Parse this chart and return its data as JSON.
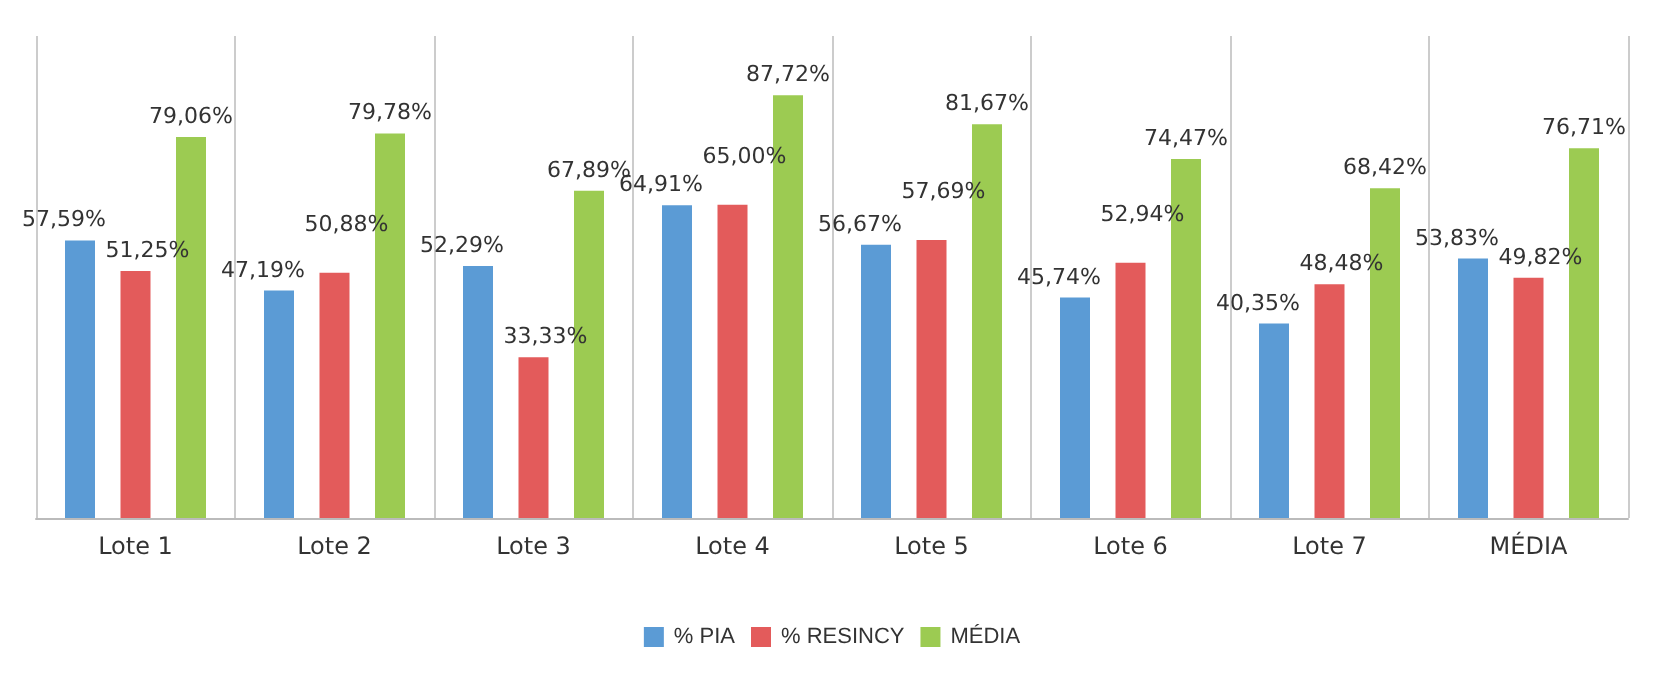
{
  "chart_data": {
    "type": "bar",
    "categories": [
      "Lote 1",
      "Lote 2",
      "Lote 3",
      "Lote 4",
      "Lote 5",
      "Lote 6",
      "Lote 7",
      "MÉDIA"
    ],
    "series": [
      {
        "name": "% PIA",
        "color": "#5b9bd5",
        "values": [
          57.59,
          47.19,
          52.29,
          64.91,
          56.67,
          45.74,
          40.35,
          53.83
        ],
        "value_labels": [
          "57,59%",
          "47,19%",
          "52,29%",
          "64,91%",
          "56,67%",
          "45,74%",
          "40,35%",
          "53,83%"
        ]
      },
      {
        "name": "% RESINCY",
        "color": "#e35b5b",
        "values": [
          51.25,
          50.88,
          33.33,
          65.0,
          57.69,
          52.94,
          48.48,
          49.82
        ],
        "value_labels": [
          "51,25%",
          "50,88%",
          "33,33%",
          "65,00%",
          "57,69%",
          "52,94%",
          "48,48%",
          "49,82%"
        ]
      },
      {
        "name": "MÉDIA",
        "color": "#9ccb52",
        "values": [
          79.06,
          79.78,
          67.89,
          87.72,
          81.67,
          74.47,
          68.42,
          76.71
        ],
        "value_labels": [
          "79,06%",
          "79,78%",
          "67,89%",
          "87,72%",
          "81,67%",
          "74,47%",
          "68,42%",
          "76,71%"
        ]
      }
    ],
    "ylim": [
      0,
      100
    ],
    "tick_labels": "x",
    "grid": "x",
    "legend": "bottom"
  }
}
